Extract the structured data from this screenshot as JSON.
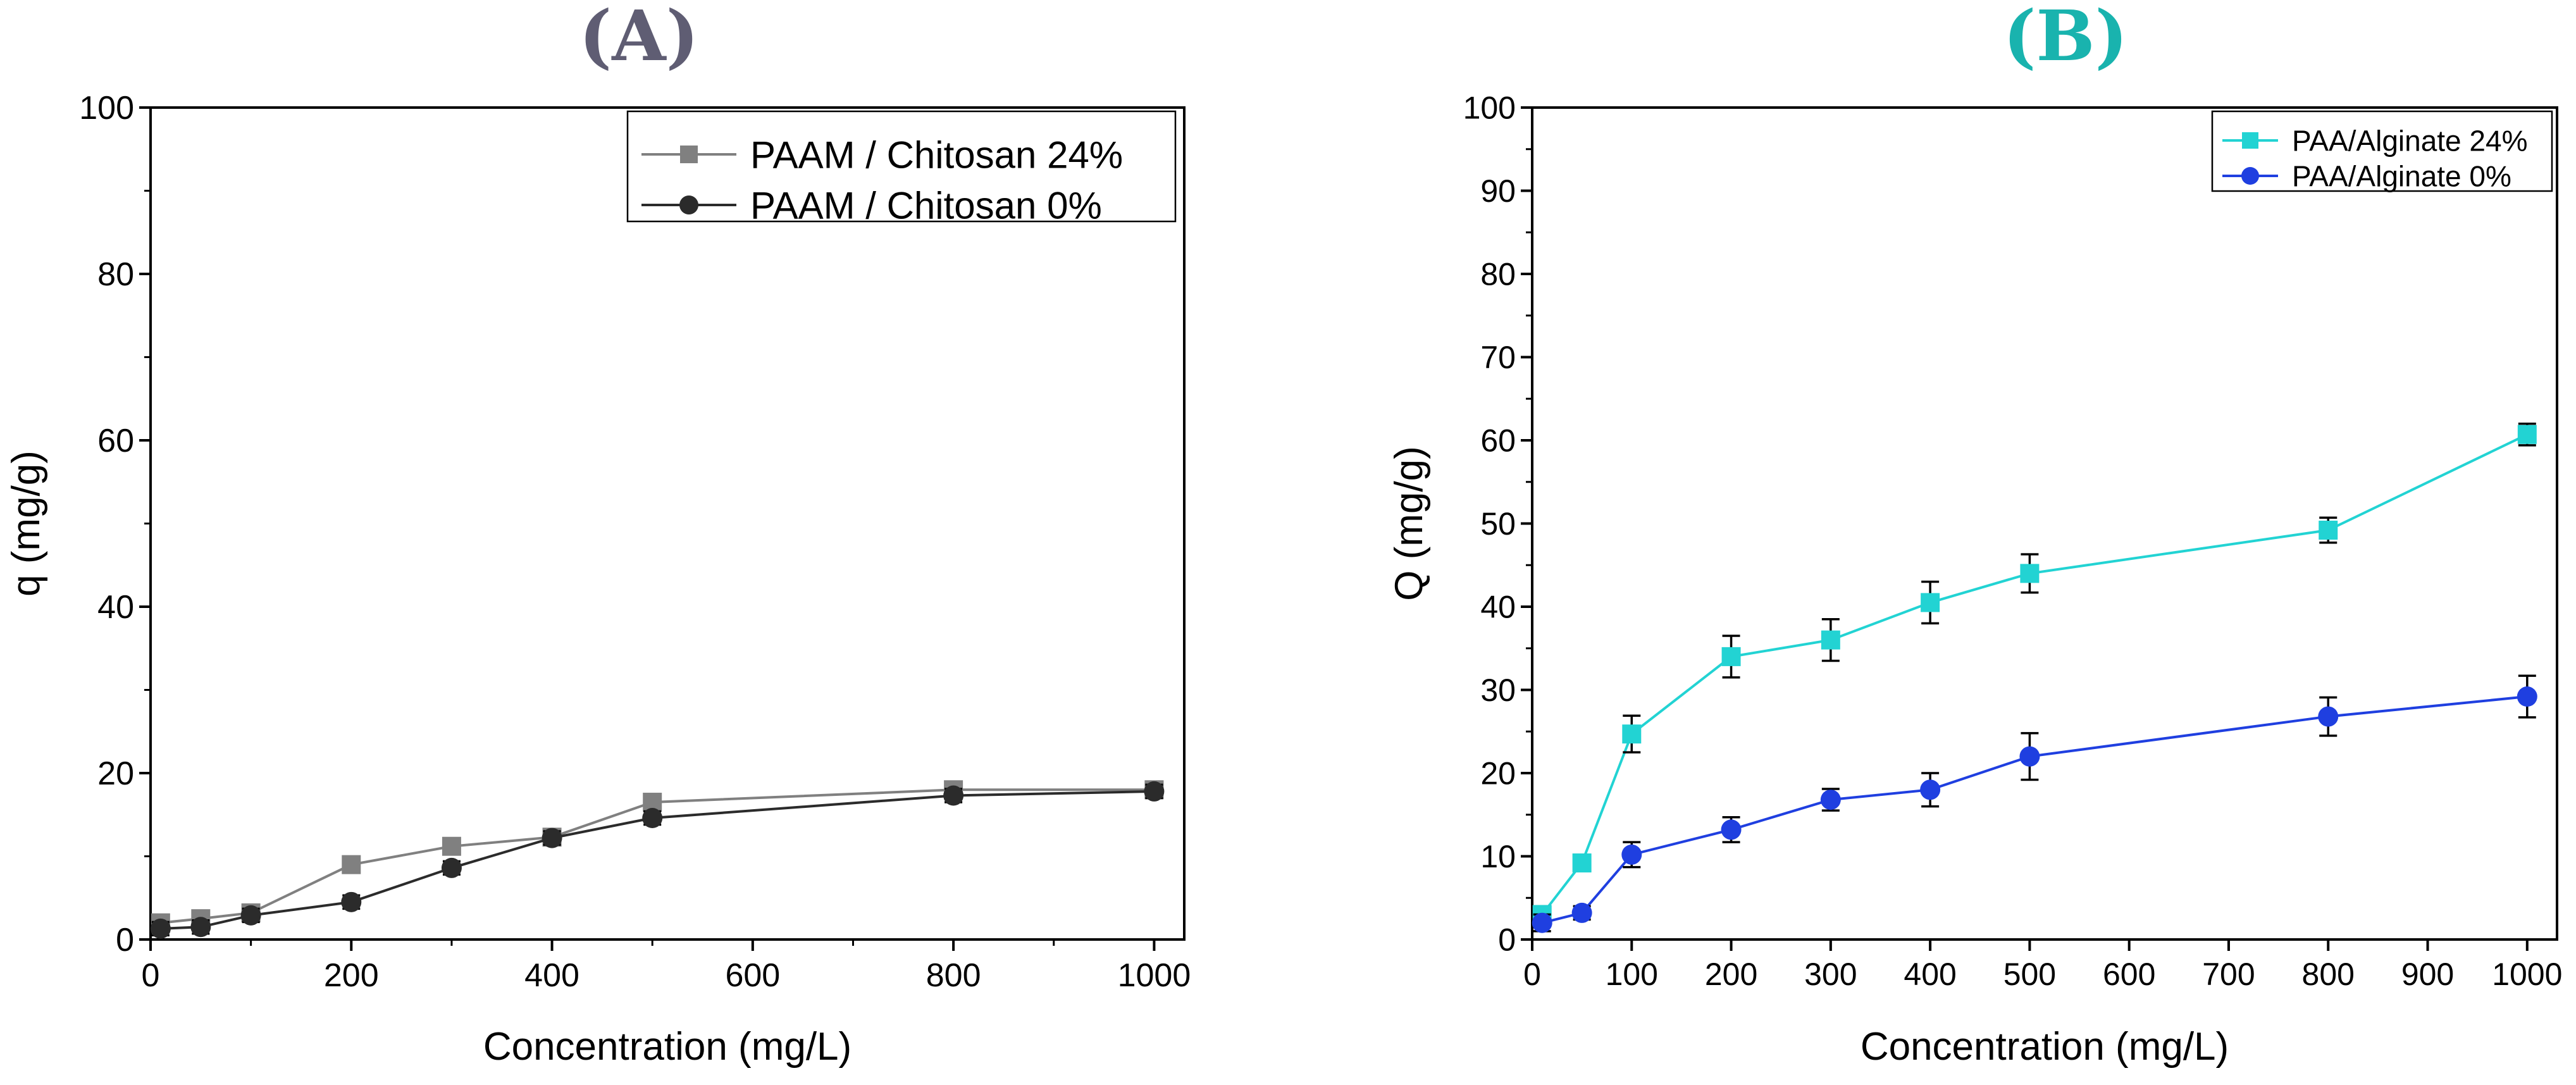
{
  "chart_data": [
    {
      "type": "line",
      "panel_label": "(A)",
      "panel_label_color": "#5f5d73",
      "title": "",
      "xlabel": "Concentration (mg/L)",
      "ylabel": "q (mg/g)",
      "xlim": [
        0,
        1030
      ],
      "ylim": [
        0,
        100
      ],
      "xticks": [
        0,
        200,
        400,
        600,
        800,
        1000
      ],
      "yticks": [
        0,
        20,
        40,
        60,
        80,
        100
      ],
      "grid": false,
      "legend_position": "top-right",
      "series": [
        {
          "name": "PAAM / Chitosan 24%",
          "marker": "square",
          "color": "#808080",
          "x": [
            10,
            50,
            100,
            200,
            300,
            400,
            500,
            800,
            1000
          ],
          "y": [
            2.0,
            2.5,
            3.2,
            9.0,
            11.2,
            12.3,
            16.5,
            18.0,
            18.0
          ],
          "err": [
            0.8,
            0.8,
            0.8,
            0.8,
            0.8,
            0.8,
            0.8,
            0.8,
            0.8
          ]
        },
        {
          "name": "PAAM / Chitosan 0%",
          "marker": "circle",
          "color": "#2b2b2b",
          "x": [
            10,
            50,
            100,
            200,
            300,
            400,
            500,
            800,
            1000
          ],
          "y": [
            1.3,
            1.5,
            2.9,
            4.5,
            8.6,
            12.2,
            14.6,
            17.3,
            17.8
          ],
          "err": [
            0.8,
            0.8,
            0.8,
            0.8,
            0.8,
            0.8,
            0.8,
            0.8,
            0.8
          ]
        }
      ]
    },
    {
      "type": "line",
      "panel_label": "(B)",
      "panel_label_color": "#19b3ae",
      "title": "",
      "xlabel": "Concentration (mg/L)",
      "ylabel": "Q (mg/g)",
      "xlim": [
        0,
        1030
      ],
      "ylim": [
        0,
        100
      ],
      "xticks": [
        0,
        100,
        200,
        300,
        400,
        500,
        600,
        700,
        800,
        900,
        1000
      ],
      "yticks": [
        0,
        10,
        20,
        30,
        40,
        50,
        60,
        70,
        80,
        90,
        100
      ],
      "grid": false,
      "legend_position": "top-right",
      "series": [
        {
          "name": "PAA/Alginate 24%",
          "marker": "square",
          "color": "#22d3d3",
          "x": [
            10,
            50,
            100,
            200,
            300,
            400,
            500,
            800,
            1000
          ],
          "y": [
            3.0,
            9.2,
            24.7,
            34.0,
            36.0,
            40.5,
            44.0,
            49.2,
            60.7
          ],
          "err": [
            1.0,
            1.0,
            2.2,
            2.5,
            2.5,
            2.5,
            2.3,
            1.5,
            1.3
          ]
        },
        {
          "name": "PAA/Alginate 0%",
          "marker": "circle",
          "color": "#1f3fe0",
          "x": [
            10,
            50,
            100,
            200,
            300,
            400,
            500,
            800,
            1000
          ],
          "y": [
            2.0,
            3.2,
            10.2,
            13.2,
            16.8,
            18.0,
            22.0,
            26.8,
            29.2
          ],
          "err": [
            1.0,
            0.8,
            1.5,
            1.5,
            1.3,
            2.0,
            2.8,
            2.3,
            2.5
          ]
        }
      ]
    }
  ]
}
